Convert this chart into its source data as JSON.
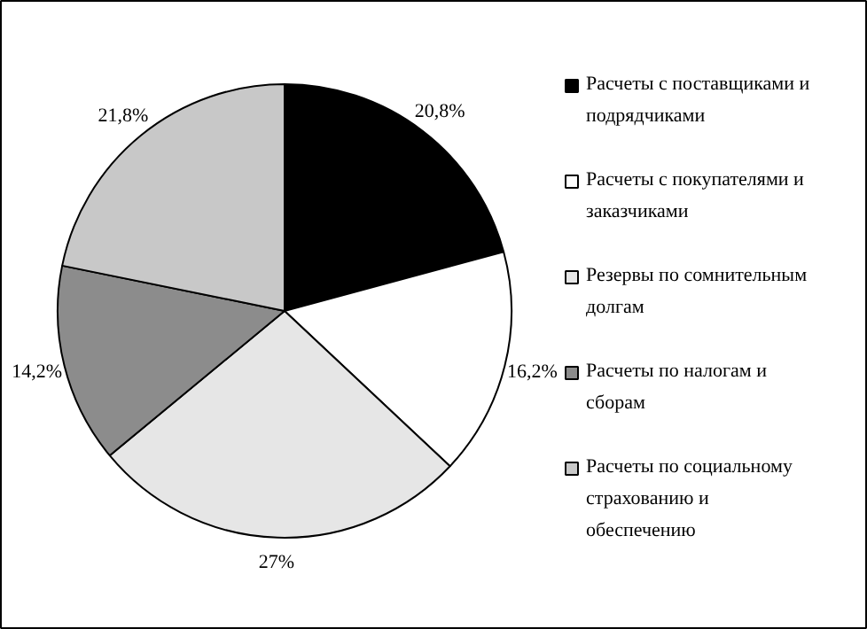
{
  "chart_data": {
    "type": "pie",
    "categories": [
      "Расчеты с поставщиками и подрядчиками",
      "Расчеты с покупателями и заказчиками",
      "Резервы по сомнительным долгам",
      "Расчеты по налогам и сборам",
      "Расчеты по социальному страхованию и обеспечению"
    ],
    "values": [
      20.8,
      16.2,
      27,
      14.2,
      21.8
    ],
    "colors": [
      "#000000",
      "#ffffff",
      "#e6e6e6",
      "#8c8c8c",
      "#c8c8c8"
    ],
    "value_labels": [
      "20,8%",
      "16,2%",
      "27%",
      "14,2%",
      "21,8%"
    ],
    "legend": "right"
  }
}
